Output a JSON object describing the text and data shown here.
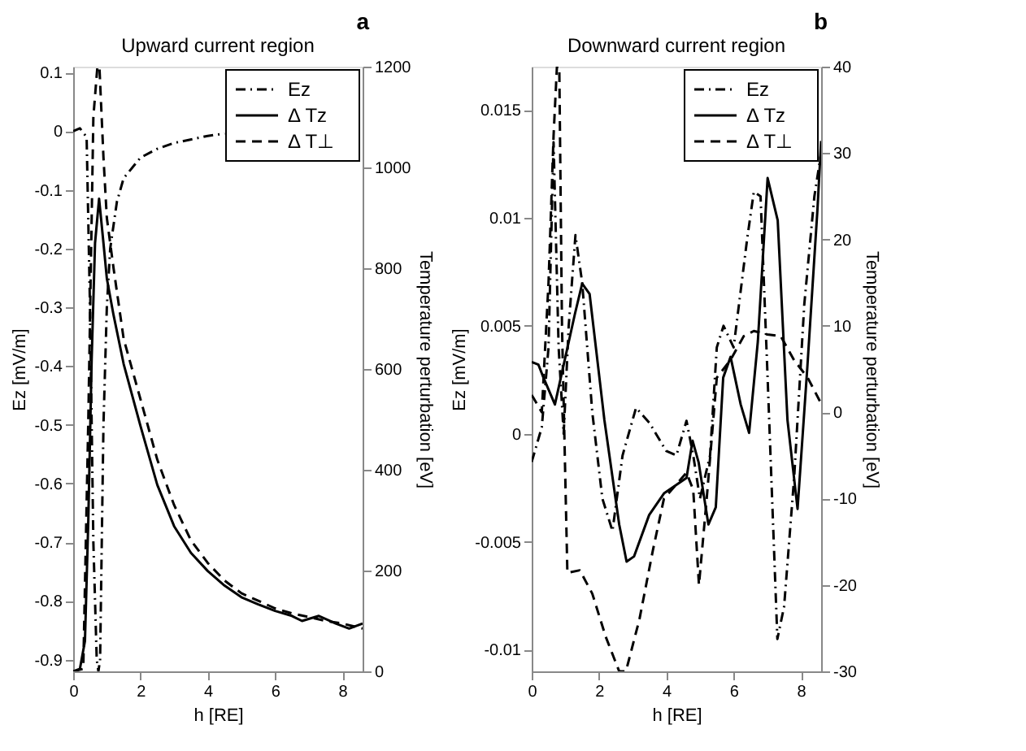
{
  "chart_data": [
    {
      "type": "line",
      "title": "Upward current region",
      "xlabel": "h [RE]",
      "ylabel": "Ez [mV/m]",
      "y2label": "Temperature perturbation [eV]",
      "annotations": [
        "a"
      ],
      "xlim": [
        0,
        8.6
      ],
      "xticks": [
        0,
        2,
        4,
        6,
        8
      ],
      "ylim": [
        -0.92,
        0.11
      ],
      "yticks": [
        -0.9,
        -0.8,
        -0.7,
        -0.6,
        -0.5,
        -0.4,
        -0.3,
        -0.2,
        -0.1,
        0,
        0.1
      ],
      "y2lim": [
        0,
        1200
      ],
      "y2ticks": [
        0,
        200,
        400,
        600,
        800,
        1000,
        1200
      ],
      "grid": false,
      "legend": "top right",
      "series": [
        {
          "name": "Ez",
          "color": "#000000",
          "line_style": "dashdot",
          "x": [
            0,
            0.2,
            0.4,
            0.5,
            0.6,
            0.7,
            0.75,
            0.8,
            0.9,
            1.0,
            1.1,
            1.3,
            1.5,
            2,
            2.5,
            3,
            4,
            4.5
          ],
          "values": [
            0,
            0.005,
            -0.01,
            -0.3,
            -0.7,
            -0.9,
            -0.92,
            -0.9,
            -0.5,
            -0.3,
            -0.2,
            -0.12,
            -0.08,
            -0.045,
            -0.03,
            -0.02,
            -0.008,
            -0.004
          ]
        },
        {
          "name": "Δ Tz",
          "color": "#000000",
          "line_style": "solid",
          "axis": "y2",
          "x": [
            0,
            0.2,
            0.35,
            0.45,
            0.55,
            0.65,
            0.77,
            0.9,
            1.0,
            1.2,
            1.5,
            2,
            2.5,
            3,
            3.5,
            4,
            4.5,
            5,
            5.5,
            6,
            6.5,
            6.8,
            7.3,
            7.8,
            8.2,
            8.6
          ],
          "values": [
            0,
            5,
            60,
            300,
            620,
            850,
            938,
            850,
            780,
            707,
            610,
            487,
            370,
            288,
            235,
            199,
            170,
            147,
            133,
            120,
            110,
            100,
            110,
            95,
            85,
            95
          ]
        },
        {
          "name": "Δ T⊥",
          "color": "#000000",
          "line_style": "dashed",
          "axis": "y2",
          "x": [
            0,
            0.3,
            0.45,
            0.6,
            0.72,
            0.78,
            0.9,
            1.0,
            1.2,
            1.5,
            2,
            2.5,
            3,
            3.5,
            4,
            4.5,
            5,
            5.5,
            6,
            6.5,
            7,
            7.5,
            8,
            8.6
          ],
          "values": [
            0,
            5,
            500,
            1100,
            1200,
            1200,
            1020,
            900,
            800,
            660,
            540,
            420,
            330,
            260,
            215,
            180,
            155,
            140,
            125,
            115,
            108,
            100,
            95,
            85
          ]
        }
      ]
    },
    {
      "type": "line",
      "title": "Downward current region",
      "xlabel": "h [RE]",
      "ylabel": "Ez [mV/m]",
      "y2label": "Temperature perturbation [eV]",
      "annotations": [
        "b"
      ],
      "xlim": [
        0,
        8.6
      ],
      "xticks": [
        0,
        2,
        4,
        6,
        8
      ],
      "ylim": [
        -0.011,
        0.017
      ],
      "yticks": [
        -0.01,
        -0.005,
        0,
        0.005,
        0.01,
        0.015
      ],
      "y2lim": [
        -30,
        40
      ],
      "y2ticks": [
        -30,
        -20,
        -10,
        0,
        10,
        20,
        30,
        40
      ],
      "grid": false,
      "legend": "top right",
      "series": [
        {
          "name": "Ez",
          "color": "#000000",
          "line_style": "dashdot",
          "x": [
            0,
            0.3,
            0.5,
            0.65,
            0.8,
            0.95,
            1.1,
            1.3,
            1.5,
            1.8,
            2.1,
            2.4,
            2.7,
            3.1,
            3.5,
            4.0,
            4.3,
            4.6,
            4.8,
            5.0,
            5.3,
            5.5,
            5.7,
            6.0,
            6.4,
            6.6,
            6.8,
            7.0,
            7.3,
            7.5,
            7.8,
            8.1,
            8.4,
            8.6
          ],
          "values": [
            -0.0013,
            0.0003,
            0.004,
            0.0135,
            0.004,
            0,
            0.005,
            0.0092,
            0.007,
            0.001,
            -0.003,
            -0.0045,
            -0.001,
            0.0012,
            0.0005,
            -0.0008,
            -0.001,
            0.0006,
            -0.001,
            -0.003,
            -0.001,
            0.004,
            0.005,
            0.004,
            0.009,
            0.0112,
            0.011,
            0.003,
            -0.0095,
            -0.008,
            -0.002,
            0.006,
            0.011,
            0.013
          ]
        },
        {
          "name": "Δ Tz",
          "color": "#000000",
          "line_style": "solid",
          "axis": "y2",
          "x": [
            0,
            0.2,
            0.35,
            0.69,
            1.28,
            1.5,
            1.72,
            2.16,
            2.6,
            2.82,
            3.04,
            3.49,
            3.93,
            4.6,
            4.78,
            4.96,
            5.25,
            5.47,
            5.69,
            5.91,
            6.21,
            6.46,
            6.72,
            7.01,
            7.31,
            7.6,
            7.9,
            8.19,
            8.49,
            8.6
          ],
          "values": [
            5.8,
            5.5,
            4,
            0.9,
            11.3,
            14.9,
            13.7,
            -0.9,
            -13,
            -17.3,
            -16.7,
            -11.9,
            -9.4,
            -7.6,
            -3.3,
            -5.8,
            -13,
            -11,
            4,
            6.4,
            0.9,
            -2.4,
            8.2,
            27.1,
            22.2,
            -0.9,
            -11.2,
            5.2,
            23.4,
            31.4
          ]
        },
        {
          "name": "Δ T⊥",
          "color": "#000000",
          "line_style": "dashed",
          "axis": "y2",
          "x": [
            0,
            0.3,
            0.5,
            0.65,
            0.75,
            0.82,
            0.9,
            1.06,
            1.43,
            1.8,
            2.2,
            2.6,
            2.8,
            3.2,
            3.6,
            3.93,
            4.6,
            4.8,
            4.97,
            5.2,
            5.5,
            5.9,
            6.3,
            6.6,
            7.0,
            7.4,
            7.8,
            8.2,
            8.6
          ],
          "values": [
            2,
            0,
            15,
            32,
            40,
            40,
            10,
            -18.6,
            -18.3,
            -21,
            -26,
            -30,
            -30,
            -24,
            -16,
            -10,
            -7,
            -9,
            -20,
            -10,
            4,
            6,
            8.8,
            9.4,
            9,
            8.8,
            6,
            4,
            1
          ]
        }
      ]
    }
  ]
}
